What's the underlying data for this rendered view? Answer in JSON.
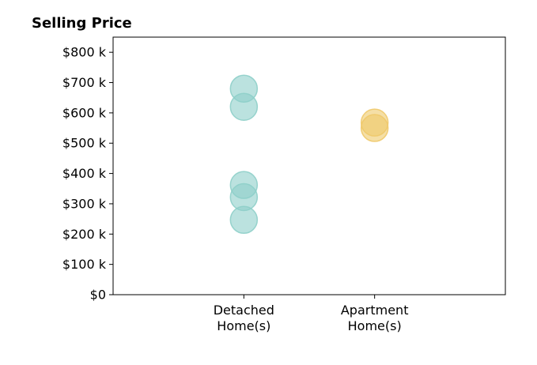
{
  "chart_data": {
    "type": "scatter",
    "title": "Selling Price",
    "xlabel": "",
    "ylabel": "",
    "categories": [
      [
        "Detached",
        "Home(s)"
      ],
      [
        "Apartment",
        "Home(s)"
      ]
    ],
    "xlim": [
      -1,
      2
    ],
    "ylim": [
      0,
      850
    ],
    "yticks": [
      0,
      100,
      200,
      300,
      400,
      500,
      600,
      700,
      800
    ],
    "ytick_labels": [
      "$0",
      "$100 k",
      "$200 k",
      "$300 k",
      "$400 k",
      "$500 k",
      "$600 k",
      "$700 k",
      "$800 k"
    ],
    "grid": false,
    "legend": "none",
    "series": [
      {
        "category_index": 0,
        "color": "#8ecfc9",
        "values": [
          680,
          620,
          362,
          322,
          247
        ]
      },
      {
        "category_index": 1,
        "color": "#efc96a",
        "values": [
          568,
          550
        ]
      }
    ]
  }
}
